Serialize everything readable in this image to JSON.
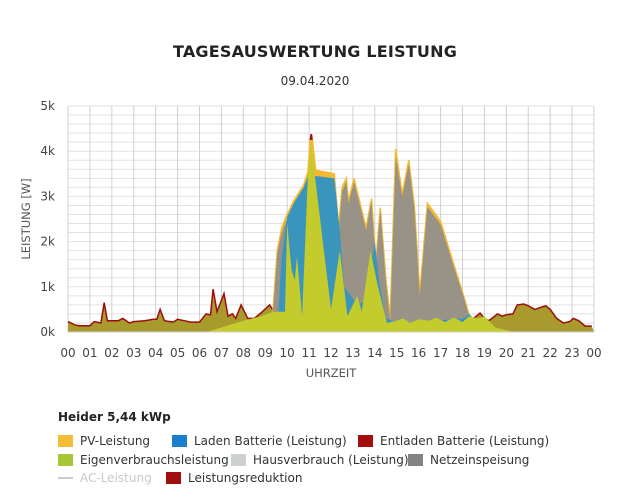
{
  "chart_data": {
    "type": "area",
    "title": "TAGESAUSWERTUNG LEISTUNG",
    "subtitle": "09.04.2020",
    "xlabel": "UHRZEIT",
    "ylabel": "LEISTUNG [W]",
    "xlim": [
      0,
      24
    ],
    "ylim": [
      0,
      5000
    ],
    "x_ticks": [
      "00",
      "01",
      "02",
      "03",
      "04",
      "05",
      "06",
      "07",
      "08",
      "09",
      "10",
      "11",
      "12",
      "13",
      "14",
      "15",
      "16",
      "17",
      "18",
      "19",
      "20",
      "21",
      "22",
      "23",
      "00"
    ],
    "y_ticks": [
      {
        "v": 0,
        "label": "0k"
      },
      {
        "v": 1000,
        "label": "1k"
      },
      {
        "v": 2000,
        "label": "2k"
      },
      {
        "v": 3000,
        "label": "3k"
      },
      {
        "v": 4000,
        "label": "4k"
      },
      {
        "v": 5000,
        "label": "5k"
      }
    ],
    "grid": true,
    "legend_title": "Heider 5,44 kWp",
    "legend_placement": "bottom",
    "series": [
      {
        "key": "entladen",
        "name": "Entladen Batterie (Leistung)",
        "color": "#9b0e0e",
        "fill": "#a99a2e",
        "points": [
          [
            0,
            230
          ],
          [
            0.3,
            160
          ],
          [
            0.5,
            140
          ],
          [
            1,
            140
          ],
          [
            1.2,
            230
          ],
          [
            1.5,
            200
          ],
          [
            1.65,
            650
          ],
          [
            1.8,
            250
          ],
          [
            2.3,
            250
          ],
          [
            2.5,
            300
          ],
          [
            2.8,
            200
          ],
          [
            3,
            230
          ],
          [
            3.5,
            250
          ],
          [
            3.9,
            280
          ],
          [
            4.05,
            280
          ],
          [
            4.2,
            500
          ],
          [
            4.4,
            250
          ],
          [
            4.8,
            220
          ],
          [
            5,
            280
          ],
          [
            5.3,
            250
          ],
          [
            5.6,
            220
          ],
          [
            6,
            220
          ],
          [
            6.3,
            400
          ],
          [
            6.5,
            380
          ],
          [
            6.62,
            950
          ],
          [
            6.8,
            450
          ],
          [
            7,
            700
          ],
          [
            7.12,
            850
          ],
          [
            7.3,
            350
          ],
          [
            7.5,
            400
          ],
          [
            7.65,
            300
          ],
          [
            7.9,
            600
          ],
          [
            8.2,
            300
          ],
          [
            8.5,
            300
          ],
          [
            8.8,
            420
          ],
          [
            9.2,
            600
          ],
          [
            9.4,
            450
          ],
          [
            18.3,
            350
          ],
          [
            18.5,
            300
          ],
          [
            18.8,
            420
          ],
          [
            19,
            300
          ],
          [
            19.2,
            250
          ],
          [
            19.6,
            400
          ],
          [
            19.8,
            350
          ],
          [
            20,
            380
          ],
          [
            20.3,
            400
          ],
          [
            20.5,
            600
          ],
          [
            20.8,
            620
          ],
          [
            21,
            580
          ],
          [
            21.3,
            500
          ],
          [
            21.6,
            550
          ],
          [
            21.8,
            580
          ],
          [
            22,
            500
          ],
          [
            22.3,
            300
          ],
          [
            22.6,
            200
          ],
          [
            22.9,
            230
          ],
          [
            23.05,
            300
          ],
          [
            23.3,
            250
          ],
          [
            23.6,
            130
          ],
          [
            23.9,
            130
          ],
          [
            24,
            0
          ]
        ]
      },
      {
        "key": "pv",
        "name": "PV-Leistung",
        "color": "#f3b932",
        "points": [
          [
            9.3,
            0
          ],
          [
            9.35,
            450
          ],
          [
            9.55,
            1800
          ],
          [
            9.75,
            2300
          ],
          [
            9.95,
            2550
          ],
          [
            10.3,
            2900
          ],
          [
            10.75,
            3250
          ],
          [
            10.95,
            3550
          ],
          [
            11.05,
            4250
          ],
          [
            11.15,
            4250
          ],
          [
            11.3,
            3580
          ],
          [
            11.6,
            3550
          ],
          [
            12.15,
            3500
          ],
          [
            12.35,
            2300
          ],
          [
            12.5,
            3200
          ],
          [
            12.7,
            3400
          ],
          [
            12.8,
            2900
          ],
          [
            13.05,
            3400
          ],
          [
            13.6,
            2300
          ],
          [
            13.85,
            2950
          ],
          [
            14.05,
            1550
          ],
          [
            14.25,
            2750
          ],
          [
            14.5,
            1200
          ],
          [
            14.7,
            300
          ],
          [
            14.95,
            4050
          ],
          [
            15.25,
            3050
          ],
          [
            15.55,
            3800
          ],
          [
            15.8,
            2800
          ],
          [
            16.05,
            850
          ],
          [
            16.4,
            2850
          ],
          [
            17,
            2450
          ],
          [
            17.6,
            1500
          ],
          [
            18.05,
            800
          ],
          [
            18.3,
            380
          ],
          [
            18.5,
            0
          ]
        ]
      },
      {
        "key": "netz",
        "name": "Netzeinspeisung",
        "color": "#999286",
        "points": [
          [
            9.3,
            0
          ],
          [
            9.35,
            400
          ],
          [
            9.55,
            1750
          ],
          [
            9.75,
            2200
          ],
          [
            9.95,
            2450
          ],
          [
            12.2,
            2300
          ],
          [
            12.35,
            2200
          ],
          [
            12.5,
            3100
          ],
          [
            12.7,
            3330
          ],
          [
            12.8,
            2850
          ],
          [
            13.05,
            3330
          ],
          [
            13.6,
            2250
          ],
          [
            13.85,
            2900
          ],
          [
            14.05,
            1500
          ],
          [
            14.25,
            2700
          ],
          [
            14.5,
            1150
          ],
          [
            14.7,
            250
          ],
          [
            14.95,
            3900
          ],
          [
            15.25,
            3000
          ],
          [
            15.55,
            3720
          ],
          [
            15.8,
            2750
          ],
          [
            16.05,
            800
          ],
          [
            16.4,
            2770
          ],
          [
            17,
            2380
          ],
          [
            17.6,
            1450
          ],
          [
            18.05,
            780
          ],
          [
            18.3,
            350
          ],
          [
            18.5,
            0
          ]
        ]
      },
      {
        "key": "laden",
        "name": "Laden Batterie (Leistung)",
        "color": "#3a95bd",
        "points": [
          [
            9.5,
            0
          ],
          [
            9.6,
            450
          ],
          [
            9.75,
            1670
          ],
          [
            10,
            2550
          ],
          [
            10.3,
            2850
          ],
          [
            10.75,
            3200
          ],
          [
            10.95,
            3450
          ],
          [
            11.35,
            3450
          ],
          [
            12.15,
            3400
          ],
          [
            12.4,
            2250
          ],
          [
            12.6,
            1000
          ],
          [
            12.9,
            800
          ],
          [
            13.2,
            600
          ],
          [
            13.6,
            700
          ],
          [
            14,
            2000
          ],
          [
            14.2,
            1100
          ],
          [
            14.5,
            300
          ],
          [
            14.8,
            250
          ],
          [
            15.5,
            200
          ],
          [
            16,
            250
          ],
          [
            16.8,
            250
          ],
          [
            17.5,
            280
          ],
          [
            18.05,
            300
          ],
          [
            18.3,
            400
          ],
          [
            18.6,
            250
          ],
          [
            18.7,
            0
          ]
        ]
      },
      {
        "key": "eigen",
        "name": "Eigenverbrauchsleistung",
        "color": "#c3cc2c",
        "points": [
          [
            0,
            0
          ],
          [
            6.3,
            0
          ],
          [
            7,
            100
          ],
          [
            8,
            250
          ],
          [
            8.8,
            350
          ],
          [
            9.4,
            450
          ],
          [
            9.9,
            450
          ],
          [
            10,
            2400
          ],
          [
            10.2,
            1370
          ],
          [
            10.35,
            1150
          ],
          [
            10.45,
            1670
          ],
          [
            10.68,
            340
          ],
          [
            10.95,
            3500
          ],
          [
            11.1,
            4200
          ],
          [
            11.3,
            3300
          ],
          [
            12,
            500
          ],
          [
            12.4,
            1800
          ],
          [
            12.75,
            350
          ],
          [
            13.2,
            800
          ],
          [
            13.4,
            450
          ],
          [
            13.8,
            1800
          ],
          [
            14.1,
            1100
          ],
          [
            14.55,
            200
          ],
          [
            15,
            250
          ],
          [
            15.3,
            300
          ],
          [
            15.6,
            200
          ],
          [
            16,
            280
          ],
          [
            16.5,
            250
          ],
          [
            16.8,
            320
          ],
          [
            17.2,
            220
          ],
          [
            17.6,
            320
          ],
          [
            18,
            220
          ],
          [
            18.3,
            350
          ],
          [
            18.7,
            300
          ],
          [
            19,
            350
          ],
          [
            19.5,
            100
          ],
          [
            20.3,
            0
          ],
          [
            24,
            0
          ]
        ]
      }
    ]
  },
  "legend": [
    {
      "label": "PV-Leistung",
      "color": "#f5bd35",
      "kind": "box"
    },
    {
      "label": "Laden Batterie (Leistung)",
      "color": "#1b7fcf",
      "kind": "box"
    },
    {
      "label": "Entladen Batterie (Leistung)",
      "color": "#a20d0d",
      "kind": "box"
    },
    {
      "label": "Eigenverbrauchsleistung",
      "color": "#a6c634",
      "kind": "box"
    },
    {
      "label": "Hausverbrauch (Leistung)",
      "color": "#cdd0d1",
      "kind": "box"
    },
    {
      "label": "Netzeinspeisung",
      "color": "#838585",
      "kind": "box"
    },
    {
      "label": "AC-Leistung",
      "color": "#cccccc",
      "kind": "line",
      "hidden": true
    },
    {
      "label": "Leistungsreduktion",
      "color": "#a20d0d",
      "kind": "box"
    }
  ]
}
